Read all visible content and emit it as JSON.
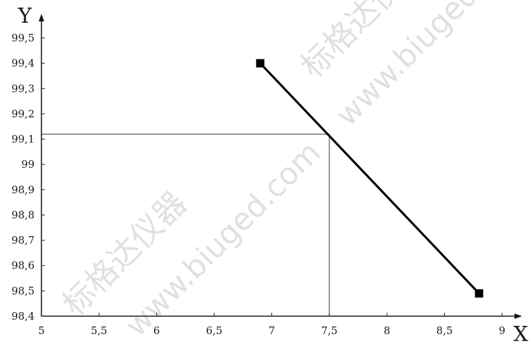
{
  "chart_data": {
    "type": "line",
    "title": "",
    "xlabel": "X",
    "ylabel": "Y",
    "xlim": [
      5,
      9
    ],
    "ylim": [
      98.4,
      99.5
    ],
    "x_ticks": [
      5,
      5.5,
      6,
      6.5,
      7,
      7.5,
      8,
      8.5,
      9
    ],
    "x_tick_labels": [
      "5",
      "5,5",
      "6",
      "6,5",
      "7",
      "7,5",
      "8",
      "8,5",
      "9"
    ],
    "y_ticks": [
      98.4,
      98.5,
      98.6,
      98.7,
      98.8,
      98.9,
      99,
      99.1,
      99.2,
      99.3,
      99.4,
      99.5
    ],
    "y_tick_labels": [
      "98,4",
      "98,5",
      "98,6",
      "98,7",
      "98,8",
      "98,9",
      "99",
      "99,1",
      "99,2",
      "99,3",
      "99,4",
      "99,5"
    ],
    "series": [
      {
        "x": [
          6.9,
          8.8
        ],
        "y": [
          99.4,
          98.49
        ]
      }
    ],
    "reference_point": {
      "x": 7.5,
      "y": 99.12
    },
    "grid": false,
    "colors": {
      "axis": "#1a1a1a",
      "line": "#000000",
      "marker": "#000000",
      "guide": "#333333",
      "watermark": "#c8c8c8"
    }
  },
  "watermarks": [
    {
      "text": "标格达仪器"
    },
    {
      "text": "www.biuged.com"
    },
    {
      "text": "标格达仪器"
    },
    {
      "text": "www.biuged.com"
    }
  ]
}
